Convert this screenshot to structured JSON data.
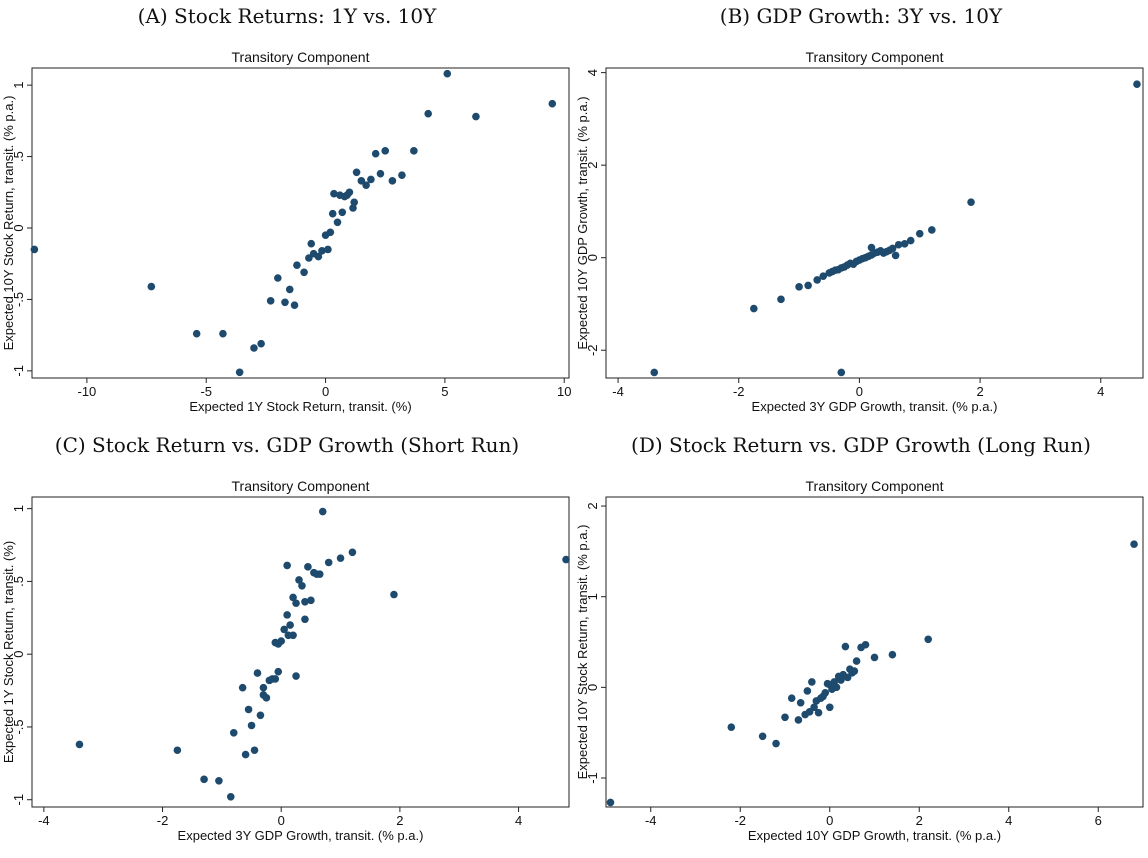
{
  "chart_data": [
    {
      "caption": "(A) Stock Returns: 1Y vs. 10Y",
      "title": "Transitory Component",
      "type": "scatter",
      "xlabel": "Expected 1Y Stock Return, transit. (%)",
      "ylabel": "Expected 10Y Stock Return, transit. (% p.a.)",
      "xlim": [
        -12.3,
        10.2
      ],
      "ylim": [
        -1.05,
        1.12
      ],
      "xticks": [
        {
          "v": -10,
          "t": "-10"
        },
        {
          "v": -5,
          "t": "-5"
        },
        {
          "v": 0,
          "t": "0"
        },
        {
          "v": 5,
          "t": "5"
        },
        {
          "v": 10,
          "t": "10"
        }
      ],
      "yticks": [
        {
          "v": -1,
          "t": "-1"
        },
        {
          "v": -0.5,
          "t": "-.5"
        },
        {
          "v": 0,
          "t": "0"
        },
        {
          "v": 0.5,
          "t": ".5"
        },
        {
          "v": 1,
          "t": "1"
        }
      ],
      "points": [
        [
          -12.2,
          -0.15
        ],
        [
          -7.3,
          -0.41
        ],
        [
          -5.4,
          -0.74
        ],
        [
          -4.3,
          -0.74
        ],
        [
          -3.6,
          -1.01
        ],
        [
          -3.0,
          -0.84
        ],
        [
          -2.7,
          -0.81
        ],
        [
          -2.3,
          -0.51
        ],
        [
          -2.0,
          -0.35
        ],
        [
          -1.7,
          -0.52
        ],
        [
          -1.5,
          -0.43
        ],
        [
          -1.3,
          -0.54
        ],
        [
          -1.2,
          -0.26
        ],
        [
          -0.9,
          -0.31
        ],
        [
          -0.7,
          -0.21
        ],
        [
          -0.6,
          -0.11
        ],
        [
          -0.5,
          -0.18
        ],
        [
          -0.3,
          -0.2
        ],
        [
          -0.15,
          -0.16
        ],
        [
          0.0,
          -0.05
        ],
        [
          0.1,
          -0.15
        ],
        [
          0.2,
          -0.03
        ],
        [
          0.3,
          0.1
        ],
        [
          0.35,
          0.24
        ],
        [
          0.5,
          0.04
        ],
        [
          0.6,
          0.23
        ],
        [
          0.7,
          0.11
        ],
        [
          0.8,
          0.22
        ],
        [
          0.9,
          0.23
        ],
        [
          1.0,
          0.25
        ],
        [
          1.15,
          0.14
        ],
        [
          1.2,
          0.18
        ],
        [
          1.3,
          0.39
        ],
        [
          1.5,
          0.33
        ],
        [
          1.7,
          0.3
        ],
        [
          1.9,
          0.34
        ],
        [
          2.1,
          0.52
        ],
        [
          2.3,
          0.38
        ],
        [
          2.5,
          0.54
        ],
        [
          2.8,
          0.33
        ],
        [
          3.2,
          0.37
        ],
        [
          3.7,
          0.54
        ],
        [
          4.3,
          0.8
        ],
        [
          5.1,
          1.08
        ],
        [
          6.3,
          0.78
        ],
        [
          9.5,
          0.87
        ]
      ]
    },
    {
      "caption": "(B) GDP Growth: 3Y vs. 10Y",
      "title": "Transitory Component",
      "type": "scatter",
      "xlabel": "Expected 3Y GDP Growth, transit. (% p.a.)",
      "ylabel": "Expected 10Y GDP Growth, transit. (% p.a.)",
      "xlim": [
        -4.2,
        4.7
      ],
      "ylim": [
        -2.6,
        4.1
      ],
      "xticks": [
        {
          "v": -4,
          "t": "-4"
        },
        {
          "v": -2,
          "t": "-2"
        },
        {
          "v": 0,
          "t": "0"
        },
        {
          "v": 2,
          "t": "2"
        },
        {
          "v": 4,
          "t": "4"
        }
      ],
      "yticks": [
        {
          "v": -2,
          "t": "-2"
        },
        {
          "v": 0,
          "t": "0"
        },
        {
          "v": 2,
          "t": "2"
        },
        {
          "v": 4,
          "t": "4"
        }
      ],
      "points": [
        [
          -3.4,
          -2.48
        ],
        [
          -0.3,
          -2.48
        ],
        [
          -1.75,
          -1.1
        ],
        [
          -1.3,
          -0.9
        ],
        [
          -1.0,
          -0.63
        ],
        [
          -0.85,
          -0.6
        ],
        [
          -0.7,
          -0.48
        ],
        [
          -0.6,
          -0.4
        ],
        [
          -0.5,
          -0.33
        ],
        [
          -0.45,
          -0.3
        ],
        [
          -0.4,
          -0.27
        ],
        [
          -0.35,
          -0.26
        ],
        [
          -0.3,
          -0.22
        ],
        [
          -0.25,
          -0.2
        ],
        [
          -0.2,
          -0.16
        ],
        [
          -0.15,
          -0.12
        ],
        [
          -0.1,
          -0.14
        ],
        [
          -0.05,
          -0.08
        ],
        [
          0.0,
          -0.05
        ],
        [
          0.05,
          -0.02
        ],
        [
          0.1,
          0.0
        ],
        [
          0.15,
          0.03
        ],
        [
          0.2,
          0.06
        ],
        [
          0.25,
          0.1
        ],
        [
          0.3,
          0.12
        ],
        [
          0.35,
          0.15
        ],
        [
          0.4,
          0.1
        ],
        [
          0.45,
          0.13
        ],
        [
          0.5,
          0.16
        ],
        [
          0.55,
          0.2
        ],
        [
          0.6,
          0.05
        ],
        [
          0.65,
          0.28
        ],
        [
          0.75,
          0.3
        ],
        [
          0.85,
          0.37
        ],
        [
          1.0,
          0.52
        ],
        [
          1.2,
          0.6
        ],
        [
          1.85,
          1.2
        ],
        [
          0.2,
          0.22
        ],
        [
          4.6,
          3.75
        ]
      ]
    },
    {
      "caption": "(C) Stock Return vs. GDP Growth (Short Run)",
      "title": "Transitory Component",
      "type": "scatter",
      "xlabel": "Expected 3Y GDP Growth, transit. (% p.a.)",
      "ylabel": "Expected 1Y Stock Return, transit. (%)",
      "xlim": [
        -4.2,
        4.85
      ],
      "ylim": [
        -1.05,
        1.08
      ],
      "xticks": [
        {
          "v": -4,
          "t": "-4"
        },
        {
          "v": -2,
          "t": "-2"
        },
        {
          "v": 0,
          "t": "0"
        },
        {
          "v": 2,
          "t": "2"
        },
        {
          "v": 4,
          "t": "4"
        }
      ],
      "yticks": [
        {
          "v": -1,
          "t": "-1"
        },
        {
          "v": -0.5,
          "t": "-.5"
        },
        {
          "v": 0,
          "t": "0"
        },
        {
          "v": 0.5,
          "t": ".5"
        },
        {
          "v": 1,
          "t": "1"
        }
      ],
      "points": [
        [
          -3.4,
          -0.62
        ],
        [
          -1.75,
          -0.66
        ],
        [
          -1.3,
          -0.86
        ],
        [
          -1.05,
          -0.87
        ],
        [
          -0.85,
          -0.98
        ],
        [
          -0.8,
          -0.54
        ],
        [
          -0.65,
          -0.23
        ],
        [
          -0.6,
          -0.69
        ],
        [
          -0.5,
          -0.49
        ],
        [
          -0.55,
          -0.38
        ],
        [
          -0.45,
          -0.66
        ],
        [
          -0.4,
          -0.13
        ],
        [
          -0.35,
          -0.42
        ],
        [
          -0.3,
          -0.28
        ],
        [
          -0.3,
          -0.23
        ],
        [
          -0.25,
          -0.3
        ],
        [
          -0.2,
          -0.18
        ],
        [
          -0.15,
          -0.17
        ],
        [
          -0.1,
          -0.17
        ],
        [
          -0.05,
          -0.12
        ],
        [
          -0.1,
          0.08
        ],
        [
          -0.05,
          0.07
        ],
        [
          0.0,
          0.09
        ],
        [
          0.05,
          0.17
        ],
        [
          0.1,
          0.27
        ],
        [
          0.12,
          0.13
        ],
        [
          0.15,
          0.2
        ],
        [
          0.1,
          0.61
        ],
        [
          0.2,
          0.39
        ],
        [
          0.25,
          0.35
        ],
        [
          0.2,
          0.13
        ],
        [
          0.25,
          -0.15
        ],
        [
          0.3,
          0.51
        ],
        [
          0.35,
          0.47
        ],
        [
          0.4,
          0.36
        ],
        [
          0.4,
          0.24
        ],
        [
          0.45,
          0.6
        ],
        [
          0.5,
          0.37
        ],
        [
          0.55,
          0.56
        ],
        [
          0.6,
          0.55
        ],
        [
          0.65,
          0.55
        ],
        [
          0.7,
          0.98
        ],
        [
          0.8,
          0.63
        ],
        [
          1.0,
          0.66
        ],
        [
          1.2,
          0.7
        ],
        [
          1.9,
          0.41
        ],
        [
          4.8,
          0.65
        ]
      ]
    },
    {
      "caption": "(D) Stock Return vs. GDP Growth (Long Run)",
      "title": "Transitory Component",
      "type": "scatter",
      "xlabel": "Expected 10Y GDP Growth, transit. (% p.a.)",
      "ylabel": "Expected 10Y Stock Return, transit. (% p.a.)",
      "xlim": [
        -5.0,
        7.0
      ],
      "ylim": [
        -1.32,
        2.1
      ],
      "xticks": [
        {
          "v": -4,
          "t": "-4"
        },
        {
          "v": -2,
          "t": "-2"
        },
        {
          "v": 0,
          "t": "0"
        },
        {
          "v": 2,
          "t": "2"
        },
        {
          "v": 4,
          "t": "4"
        },
        {
          "v": 6,
          "t": "6"
        }
      ],
      "yticks": [
        {
          "v": -1,
          "t": "-1"
        },
        {
          "v": 0,
          "t": "0"
        },
        {
          "v": 1,
          "t": "1"
        },
        {
          "v": 2,
          "t": "2"
        }
      ],
      "points": [
        [
          -4.9,
          -1.27
        ],
        [
          -2.2,
          -0.44
        ],
        [
          -1.5,
          -0.54
        ],
        [
          -1.2,
          -0.62
        ],
        [
          -1.0,
          -0.33
        ],
        [
          -0.85,
          -0.12
        ],
        [
          -0.7,
          -0.36
        ],
        [
          -0.65,
          -0.17
        ],
        [
          -0.55,
          -0.3
        ],
        [
          -0.5,
          -0.04
        ],
        [
          -0.45,
          -0.27
        ],
        [
          -0.4,
          0.06
        ],
        [
          -0.35,
          -0.22
        ],
        [
          -0.3,
          -0.15
        ],
        [
          -0.25,
          -0.28
        ],
        [
          -0.2,
          -0.12
        ],
        [
          -0.15,
          -0.1
        ],
        [
          -0.1,
          -0.06
        ],
        [
          -0.05,
          0.04
        ],
        [
          0.0,
          -0.22
        ],
        [
          0.0,
          0.03
        ],
        [
          0.05,
          -0.02
        ],
        [
          0.1,
          0.06
        ],
        [
          0.15,
          0.0
        ],
        [
          0.2,
          0.12
        ],
        [
          0.25,
          0.08
        ],
        [
          0.3,
          0.14
        ],
        [
          0.35,
          0.45
        ],
        [
          0.4,
          0.11
        ],
        [
          0.45,
          0.2
        ],
        [
          0.5,
          0.16
        ],
        [
          0.55,
          0.18
        ],
        [
          0.6,
          0.29
        ],
        [
          0.7,
          0.44
        ],
        [
          0.8,
          0.47
        ],
        [
          1.0,
          0.33
        ],
        [
          1.4,
          0.36
        ],
        [
          2.2,
          0.53
        ],
        [
          6.8,
          1.58
        ]
      ]
    }
  ]
}
